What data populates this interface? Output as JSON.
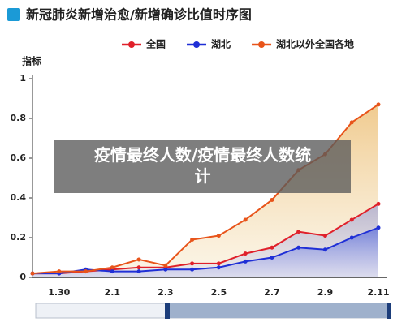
{
  "chart_data": {
    "type": "line",
    "title": "新冠肺炎新增治愈/新增确诊比值时序图",
    "y_label": "指标",
    "categories": [
      null,
      "1.30",
      null,
      "2.1",
      null,
      "2.3",
      null,
      "2.5",
      null,
      "2.7",
      null,
      "2.9",
      null,
      "2.11"
    ],
    "series": [
      {
        "name": "全国",
        "color": "#e0202a",
        "values": [
          0.02,
          0.02,
          0.03,
          0.04,
          0.05,
          0.05,
          0.07,
          0.07,
          0.12,
          0.15,
          0.23,
          0.21,
          0.29,
          0.37
        ]
      },
      {
        "name": "湖北",
        "color": "#1f2fd6",
        "values": [
          0.02,
          0.02,
          0.04,
          0.03,
          0.03,
          0.04,
          0.04,
          0.05,
          0.08,
          0.1,
          0.15,
          0.14,
          0.2,
          0.25
        ]
      },
      {
        "name": "湖北以外全国各地",
        "color": "#e8541a",
        "values": [
          0.02,
          0.03,
          0.03,
          0.05,
          0.09,
          0.06,
          0.19,
          0.21,
          0.29,
          0.39,
          0.54,
          0.62,
          0.78,
          0.87
        ]
      }
    ],
    "ylim": [
      0,
      1
    ],
    "yticks": [
      0,
      0.2,
      0.4,
      0.6,
      0.8,
      1
    ],
    "grid": false,
    "legend": "top"
  },
  "overlay_text": "疫情最终人数/疫情最终人数统计"
}
